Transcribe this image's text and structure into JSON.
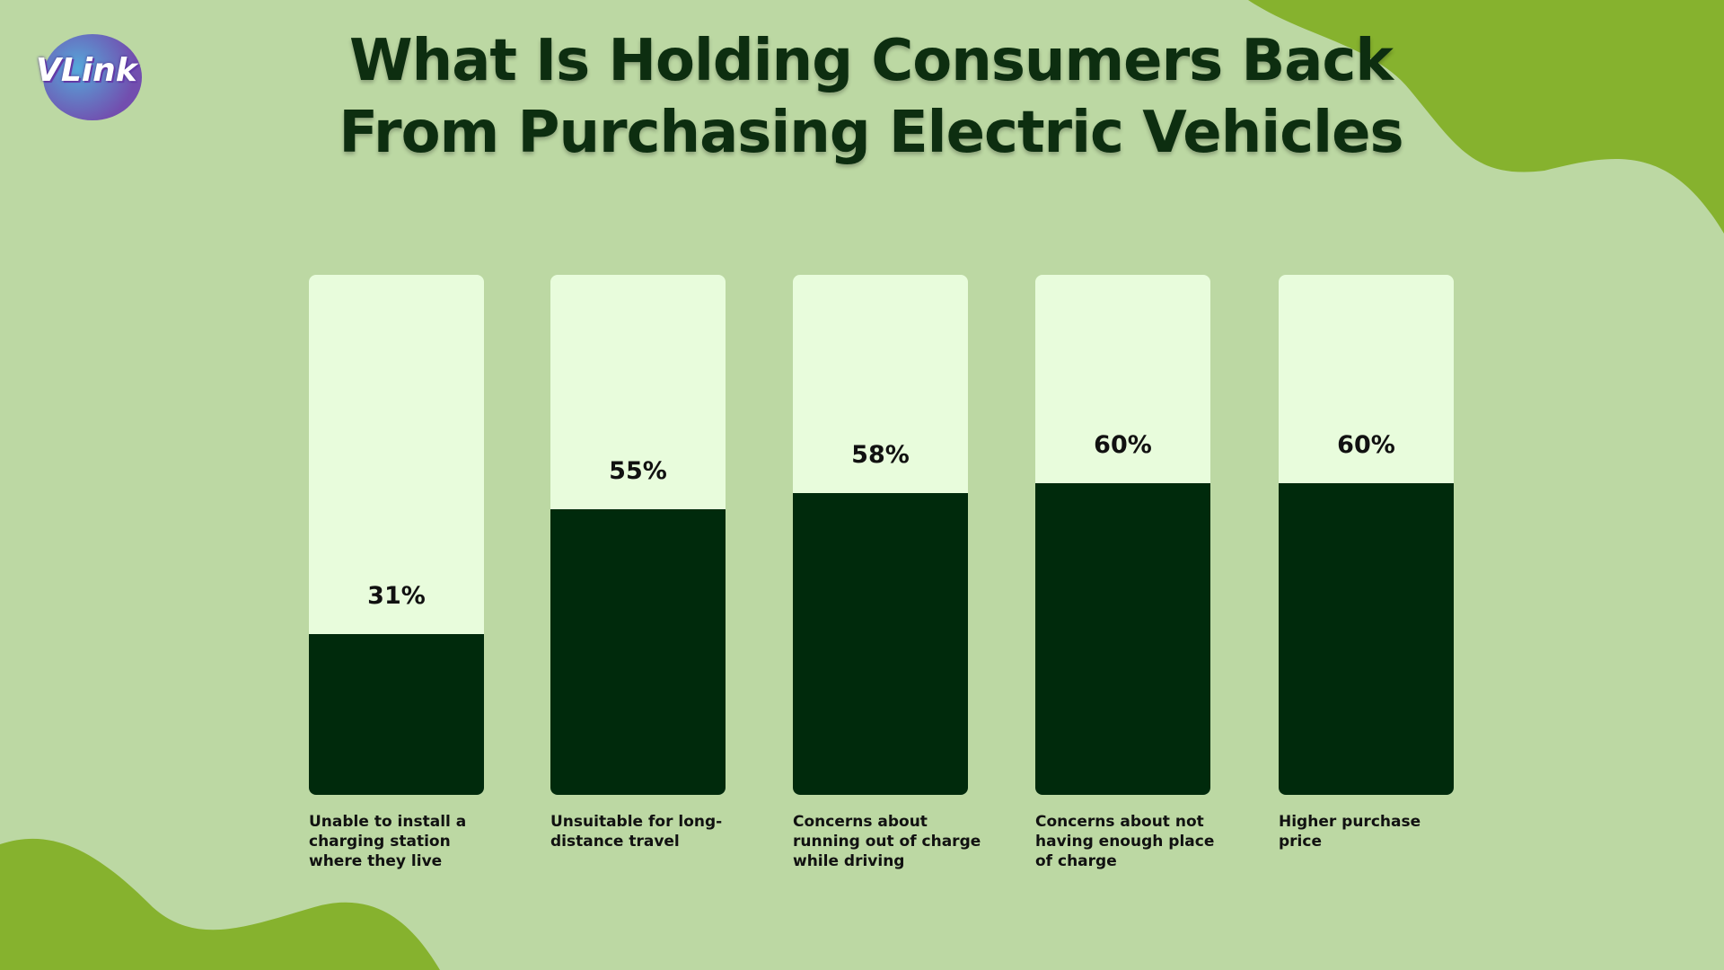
{
  "logo": {
    "text": "VLink"
  },
  "chart_data": {
    "type": "bar",
    "title": "What Is Holding Consumers Back From Purchasing Electric Vehicles",
    "categories": [
      "Unable to install a charging station where they live",
      "Unsuitable for long-distance travel",
      "Concerns about running out of charge while driving",
      "Concerns about not having enough place of charge",
      "Higher purchase price"
    ],
    "values": [
      31,
      55,
      58,
      60,
      60
    ],
    "value_labels": [
      "31%",
      "55%",
      "58%",
      "60%",
      "60%"
    ],
    "color": "#002a0c",
    "track_color": "#e8fcdc",
    "ylim": [
      0,
      100
    ]
  }
}
